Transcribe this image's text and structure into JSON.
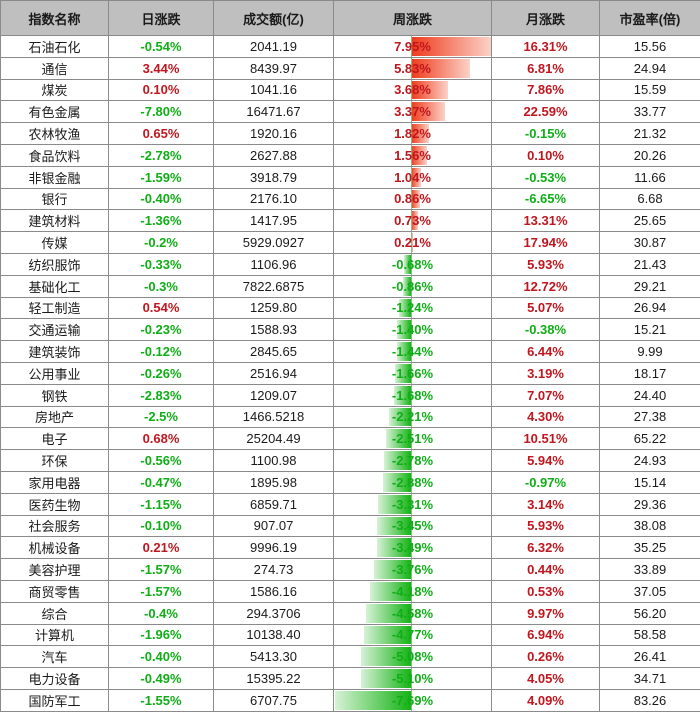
{
  "headers": [
    "指数名称",
    "日涨跌",
    "成交额(亿)",
    "周涨跌",
    "月涨跌",
    "市盈率(倍)"
  ],
  "colors": {
    "up": "#c0161e",
    "down": "#0fae16",
    "header_bg": "#bfbfbf",
    "bar_pos": "#ee3a1a",
    "bar_neg": "#14b314"
  },
  "rows": [
    {
      "name": "石油石化",
      "daily": "-0.54%",
      "turnover": "2041.19",
      "weekly": "7.95%",
      "monthly": "16.31%",
      "pe": "15.56"
    },
    {
      "name": "通信",
      "daily": "3.44%",
      "turnover": "8439.97",
      "weekly": "5.83%",
      "monthly": "6.81%",
      "pe": "24.94"
    },
    {
      "name": "煤炭",
      "daily": "0.10%",
      "turnover": "1041.16",
      "weekly": "3.68%",
      "monthly": "7.86%",
      "pe": "15.59"
    },
    {
      "name": "有色金属",
      "daily": "-7.80%",
      "turnover": "16471.67",
      "weekly": "3.37%",
      "monthly": "22.59%",
      "pe": "33.77"
    },
    {
      "name": "农林牧渔",
      "daily": "0.65%",
      "turnover": "1920.16",
      "weekly": "1.82%",
      "monthly": "-0.15%",
      "pe": "21.32"
    },
    {
      "name": "食品饮料",
      "daily": "-2.78%",
      "turnover": "2627.88",
      "weekly": "1.56%",
      "monthly": "0.10%",
      "pe": "20.26"
    },
    {
      "name": "非银金融",
      "daily": "-1.59%",
      "turnover": "3918.79",
      "weekly": "1.04%",
      "monthly": "-0.53%",
      "pe": "11.66"
    },
    {
      "name": "银行",
      "daily": "-0.40%",
      "turnover": "2176.10",
      "weekly": "0.86%",
      "monthly": "-6.65%",
      "pe": "6.68"
    },
    {
      "name": "建筑材料",
      "daily": "-1.36%",
      "turnover": "1417.95",
      "weekly": "0.73%",
      "monthly": "13.31%",
      "pe": "25.65"
    },
    {
      "name": "传媒",
      "daily": "-0.2%",
      "turnover": "5929.0927",
      "weekly": "0.21%",
      "monthly": "17.94%",
      "pe": "30.87"
    },
    {
      "name": "纺织服饰",
      "daily": "-0.33%",
      "turnover": "1106.96",
      "weekly": "-0.68%",
      "monthly": "5.93%",
      "pe": "21.43"
    },
    {
      "name": "基础化工",
      "daily": "-0.3%",
      "turnover": "7822.6875",
      "weekly": "-0.86%",
      "monthly": "12.72%",
      "pe": "29.21"
    },
    {
      "name": "轻工制造",
      "daily": "0.54%",
      "turnover": "1259.80",
      "weekly": "-1.24%",
      "monthly": "5.07%",
      "pe": "26.94"
    },
    {
      "name": "交通运输",
      "daily": "-0.23%",
      "turnover": "1588.93",
      "weekly": "-1.40%",
      "monthly": "-0.38%",
      "pe": "15.21"
    },
    {
      "name": "建筑装饰",
      "daily": "-0.12%",
      "turnover": "2845.65",
      "weekly": "-1.44%",
      "monthly": "6.44%",
      "pe": "9.99"
    },
    {
      "name": "公用事业",
      "daily": "-0.26%",
      "turnover": "2516.94",
      "weekly": "-1.66%",
      "monthly": "3.19%",
      "pe": "18.17"
    },
    {
      "name": "钢铁",
      "daily": "-2.83%",
      "turnover": "1209.07",
      "weekly": "-1.68%",
      "monthly": "7.07%",
      "pe": "24.40"
    },
    {
      "name": "房地产",
      "daily": "-2.5%",
      "turnover": "1466.5218",
      "weekly": "-2.21%",
      "monthly": "4.30%",
      "pe": "27.38"
    },
    {
      "name": "电子",
      "daily": "0.68%",
      "turnover": "25204.49",
      "weekly": "-2.51%",
      "monthly": "10.51%",
      "pe": "65.22"
    },
    {
      "name": "环保",
      "daily": "-0.56%",
      "turnover": "1100.98",
      "weekly": "-2.78%",
      "monthly": "5.94%",
      "pe": "24.93"
    },
    {
      "name": "家用电器",
      "daily": "-0.47%",
      "turnover": "1895.98",
      "weekly": "-2.88%",
      "monthly": "-0.97%",
      "pe": "15.14"
    },
    {
      "name": "医药生物",
      "daily": "-1.15%",
      "turnover": "6859.71",
      "weekly": "-3.31%",
      "monthly": "3.14%",
      "pe": "29.36"
    },
    {
      "name": "社会服务",
      "daily": "-0.10%",
      "turnover": "907.07",
      "weekly": "-3.45%",
      "monthly": "5.93%",
      "pe": "38.08"
    },
    {
      "name": "机械设备",
      "daily": "0.21%",
      "turnover": "9996.19",
      "weekly": "-3.49%",
      "monthly": "6.32%",
      "pe": "35.25"
    },
    {
      "name": "美容护理",
      "daily": "-1.57%",
      "turnover": "274.73",
      "weekly": "-3.76%",
      "monthly": "0.44%",
      "pe": "33.89"
    },
    {
      "name": "商贸零售",
      "daily": "-1.57%",
      "turnover": "1586.16",
      "weekly": "-4.18%",
      "monthly": "0.53%",
      "pe": "37.05"
    },
    {
      "name": "综合",
      "daily": "-0.4%",
      "turnover": "294.3706",
      "weekly": "-4.58%",
      "monthly": "9.97%",
      "pe": "56.20"
    },
    {
      "name": "计算机",
      "daily": "-1.96%",
      "turnover": "10138.40",
      "weekly": "-4.77%",
      "monthly": "6.94%",
      "pe": "58.58"
    },
    {
      "name": "汽车",
      "daily": "-0.40%",
      "turnover": "5413.30",
      "weekly": "-5.08%",
      "monthly": "0.26%",
      "pe": "26.41"
    },
    {
      "name": "电力设备",
      "daily": "-0.49%",
      "turnover": "15395.22",
      "weekly": "-5.10%",
      "monthly": "4.05%",
      "pe": "34.71"
    },
    {
      "name": "国防军工",
      "daily": "-1.55%",
      "turnover": "6707.75",
      "weekly": "-7.69%",
      "monthly": "4.09%",
      "pe": "83.26"
    }
  ]
}
